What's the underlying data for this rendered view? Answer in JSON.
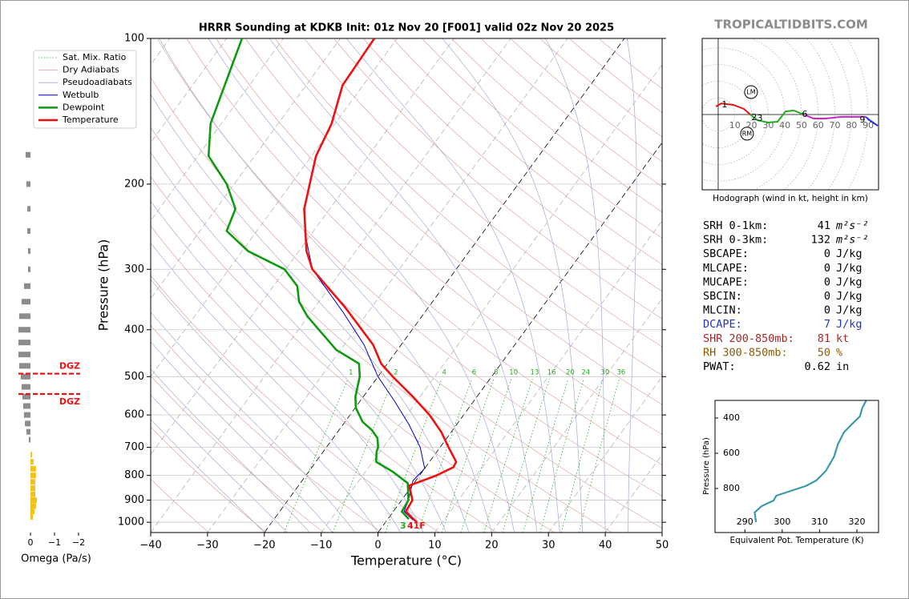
{
  "chart_data": [
    {
      "type": "skewt",
      "title": "HRRR Sounding at KDKB Init: 01z Nov 20 [F001] valid 02z Nov 20 2025",
      "xlabel": "Temperature (°C)",
      "ylabel": "Pressure (hPa)",
      "xlim": [
        -40,
        50
      ],
      "ylim": [
        1050,
        100
      ],
      "xticks": [
        {
          "value": -40,
          "label": "−40"
        },
        {
          "value": -30,
          "label": "−30"
        },
        {
          "value": -20,
          "label": "−20"
        },
        {
          "value": -10,
          "label": "−10"
        },
        0,
        10,
        20,
        30,
        40,
        50
      ],
      "yticks": [
        100,
        200,
        300,
        400,
        500,
        600,
        700,
        800,
        900,
        1000
      ],
      "grid": true,
      "mixing_ratio_labels": [
        1,
        2,
        4,
        6,
        8,
        10,
        13,
        16,
        20,
        24,
        30,
        36
      ],
      "reference_lines": [
        {
          "name": "Sat. Mix. Ratio",
          "color": "#22aa22"
        },
        {
          "name": "Dry Adiabats",
          "color": "#e0a0a0"
        },
        {
          "name": "Pseudoadiabats",
          "color": "#a8a8d8"
        }
      ],
      "series": [
        {
          "name": "Wetbulb",
          "color": "#0000cc",
          "pressure": [
            250,
            300,
            368,
            430,
            500,
            560,
            628,
            700,
            774,
            820,
            900,
            950,
            990
          ],
          "values": [
            -51.6,
            -45.3,
            -34.4,
            -26.5,
            -20.0,
            -14.1,
            -8.4,
            -3.5,
            0.0,
            -0.5,
            1.2,
            1.9,
            4.6
          ]
        },
        {
          "name": "Dewpoint",
          "color": "#119911",
          "pressure": [
            100,
            150,
            175,
            200,
            225,
            250,
            275,
            300,
            325,
            350,
            375,
            440,
            470,
            500,
            550,
            580,
            620,
            645,
            670,
            700,
            715,
            750,
            785,
            830,
            900,
            950,
            985
          ],
          "values": [
            -87.3,
            -81.9,
            -78.1,
            -71.3,
            -66.6,
            -65.3,
            -59.0,
            -50.2,
            -45.8,
            -43.5,
            -40.2,
            -30.8,
            -25.0,
            -23.2,
            -21.4,
            -19.9,
            -16.9,
            -14.2,
            -12.2,
            -10.9,
            -10.6,
            -9.4,
            -5.3,
            -1.1,
            1.2,
            1.5,
            3.7
          ]
        },
        {
          "name": "Temperature",
          "color": "#ee1111",
          "pressure": [
            100,
            125,
            150,
            175,
            225,
            275,
            300,
            360,
            430,
            470,
            500,
            550,
            600,
            650,
            700,
            750,
            770,
            800,
            840,
            900,
            950,
            1000
          ],
          "values": [
            -64.0,
            -63.6,
            -60.6,
            -59.2,
            -54.5,
            -48.7,
            -45.3,
            -34.6,
            -24.9,
            -21.1,
            -17.4,
            -11.3,
            -6.0,
            -1.8,
            1.5,
            4.7,
            4.9,
            3.0,
            -0.5,
            1.9,
            2.2,
            5.5
          ]
        }
      ],
      "surface_labels": [
        {
          "text": "3",
          "color": "#22aa22"
        },
        {
          "text": "41F",
          "color": "#ee1111"
        }
      ]
    },
    {
      "type": "hodograph",
      "caption": "Hodograph (wind in kt, height in km)",
      "xlim": [
        -9.6,
        96.2
      ],
      "ylim": [
        -45.2,
        45.7
      ],
      "rings": [
        10,
        20,
        30,
        40,
        50,
        60,
        70,
        80,
        90
      ],
      "segments": [
        {
          "color": "#ee1111",
          "u": [
            -1.4,
            1.9,
            9.1,
            15.4,
            19.2
          ],
          "v": [
            4.8,
            6.7,
            5.8,
            3.4,
            0
          ]
        },
        {
          "color": "#22aa22",
          "u": [
            19.2,
            23.6,
            29.8,
            35.6,
            40.4,
            45.2,
            51.4
          ],
          "v": [
            0,
            -3.4,
            -4.8,
            -4.3,
            1.9,
            2.4,
            0
          ]
        },
        {
          "color": "#cc22cc",
          "u": [
            51.4,
            57.2,
            64.4,
            74,
            88.5
          ],
          "v": [
            0,
            -2.4,
            -2.4,
            -1.4,
            -1.4
          ]
        },
        {
          "color": "#2233ee",
          "u": [
            88.5,
            90.9,
            95.7,
            89.4
          ],
          "v": [
            -1.4,
            -3.4,
            -6.7,
            -2.4
          ]
        }
      ],
      "heights": [
        {
          "height": 1,
          "u": 3.8,
          "v": 5.8
        },
        {
          "height": 2,
          "u": 21.6,
          "v": -1.9
        },
        {
          "height": 3,
          "u": 25,
          "v": -2.4
        },
        {
          "height": 6,
          "u": 51.9,
          "v": 0
        },
        {
          "height": 9,
          "u": 86.5,
          "v": -3.4
        }
      ],
      "storm_motions": [
        {
          "label": "LM",
          "u": 19.7,
          "v": 13.5
        },
        {
          "label": "RM",
          "u": 17.3,
          "v": -11.5
        }
      ]
    },
    {
      "type": "line",
      "xlabel": "Equivalent Pot. Temperature (K)",
      "ylabel": "Pressure (hPa)",
      "xlim": [
        282,
        325.8
      ],
      "ylim": [
        1050,
        300
      ],
      "xticks": [
        290,
        300,
        310,
        320
      ],
      "yticks": [
        400,
        600,
        800
      ],
      "color": "#3a9aa8",
      "values": [
        293.0,
        292.6,
        294.5,
        297.7,
        298.4,
        306.3,
        309.1,
        311.7,
        313.9,
        314.9,
        316.5,
        318.6,
        320.8,
        321.4,
        322.5
      ],
      "pressure": [
        991,
        936,
        900,
        868,
        841,
        786,
        755,
        700,
        618,
        550,
        482,
        436,
        391,
        345,
        300
      ]
    },
    {
      "type": "bar",
      "xlabel": "Omega (Pa/s)",
      "xlim": [
        0.5,
        -2.5
      ],
      "xticks": [
        0,
        {
          "value": -1,
          "label": "−1"
        },
        {
          "value": -2,
          "label": "−2"
        }
      ],
      "colors": {
        "positive": "#8c8c8c",
        "negative": "#f2c21b"
      },
      "pressure": [
        174,
        200,
        225,
        250,
        275,
        300,
        325,
        350,
        375,
        400,
        425,
        450,
        475,
        500,
        525,
        550,
        575,
        600,
        625,
        650,
        675,
        725,
        750,
        775,
        800,
        825,
        850,
        875,
        900,
        925,
        950,
        975
      ],
      "values": [
        0.2,
        0.17,
        0.13,
        0.13,
        0.1,
        0.1,
        0.27,
        0.37,
        0.47,
        0.5,
        0.5,
        0.5,
        0.47,
        0.4,
        0.37,
        0.33,
        0.3,
        0.27,
        0.23,
        0.17,
        0.07,
        -0.07,
        -0.13,
        -0.23,
        -0.23,
        -0.2,
        -0.2,
        -0.2,
        -0.27,
        -0.23,
        -0.17,
        -0.1
      ],
      "dgz": {
        "pressure": [
          493,
          543
        ],
        "labels": [
          "DGZ",
          "DGZ"
        ],
        "color": "#ee1111"
      }
    }
  ],
  "watermark": "TROPICALTIDBITS.COM",
  "indices": [
    {
      "label": "SRH 0-1km:",
      "value": 41,
      "unit": "m²s⁻²",
      "color": "#000000"
    },
    {
      "label": "SRH 0-3km:",
      "value": 132,
      "unit": "m²s⁻²",
      "color": "#000000"
    },
    {
      "label": "SBCAPE:",
      "value": 0,
      "unit": "J/kg",
      "color": "#000000"
    },
    {
      "label": "MLCAPE:",
      "value": 0,
      "unit": "J/kg",
      "color": "#000000"
    },
    {
      "label": "MUCAPE:",
      "value": 0,
      "unit": "J/kg",
      "color": "#000000"
    },
    {
      "label": "SBCIN:",
      "value": 0,
      "unit": "J/kg",
      "color": "#000000"
    },
    {
      "label": "MLCIN:",
      "value": 0,
      "unit": "J/kg",
      "color": "#000000"
    },
    {
      "label": "DCAPE:",
      "value": 7,
      "unit": "J/kg",
      "color": "#2233cc"
    },
    {
      "label": "SHR 200-850mb:",
      "value": 81,
      "unit": "kt",
      "color": "#a52a2a"
    },
    {
      "label": "RH 300-850mb:",
      "value": 50,
      "unit": "%",
      "color": "#8b5a00"
    },
    {
      "label": "PWAT:",
      "value": 0.62,
      "unit": "in",
      "color": "#000000"
    }
  ]
}
